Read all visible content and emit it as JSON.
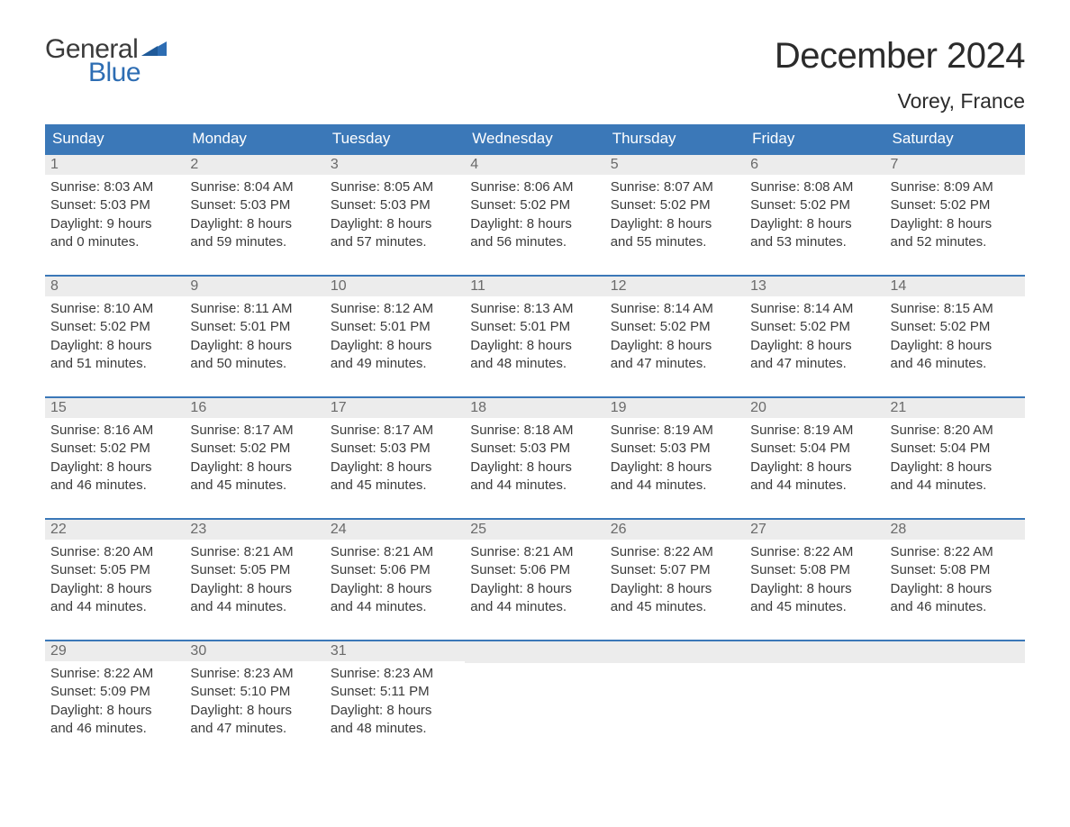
{
  "brand": {
    "word1": "General",
    "word2": "Blue",
    "text_color": "#3a3a3a",
    "accent_color": "#2d6db3"
  },
  "title": "December 2024",
  "location": "Vorey, France",
  "colors": {
    "header_bg": "#3b78b8",
    "header_text": "#ffffff",
    "daynum_bg": "#ececec",
    "daynum_text": "#6a6a6a",
    "body_text": "#3a3a3a",
    "week_border": "#3b78b8",
    "page_bg": "#ffffff"
  },
  "fonts": {
    "title_size_pt": 30,
    "location_size_pt": 17,
    "dow_size_pt": 13,
    "daynum_size_pt": 12,
    "body_size_pt": 11
  },
  "days_of_week": [
    "Sunday",
    "Monday",
    "Tuesday",
    "Wednesday",
    "Thursday",
    "Friday",
    "Saturday"
  ],
  "weeks": [
    [
      {
        "n": "1",
        "sunrise": "Sunrise: 8:03 AM",
        "sunset": "Sunset: 5:03 PM",
        "d1": "Daylight: 9 hours",
        "d2": "and 0 minutes."
      },
      {
        "n": "2",
        "sunrise": "Sunrise: 8:04 AM",
        "sunset": "Sunset: 5:03 PM",
        "d1": "Daylight: 8 hours",
        "d2": "and 59 minutes."
      },
      {
        "n": "3",
        "sunrise": "Sunrise: 8:05 AM",
        "sunset": "Sunset: 5:03 PM",
        "d1": "Daylight: 8 hours",
        "d2": "and 57 minutes."
      },
      {
        "n": "4",
        "sunrise": "Sunrise: 8:06 AM",
        "sunset": "Sunset: 5:02 PM",
        "d1": "Daylight: 8 hours",
        "d2": "and 56 minutes."
      },
      {
        "n": "5",
        "sunrise": "Sunrise: 8:07 AM",
        "sunset": "Sunset: 5:02 PM",
        "d1": "Daylight: 8 hours",
        "d2": "and 55 minutes."
      },
      {
        "n": "6",
        "sunrise": "Sunrise: 8:08 AM",
        "sunset": "Sunset: 5:02 PM",
        "d1": "Daylight: 8 hours",
        "d2": "and 53 minutes."
      },
      {
        "n": "7",
        "sunrise": "Sunrise: 8:09 AM",
        "sunset": "Sunset: 5:02 PM",
        "d1": "Daylight: 8 hours",
        "d2": "and 52 minutes."
      }
    ],
    [
      {
        "n": "8",
        "sunrise": "Sunrise: 8:10 AM",
        "sunset": "Sunset: 5:02 PM",
        "d1": "Daylight: 8 hours",
        "d2": "and 51 minutes."
      },
      {
        "n": "9",
        "sunrise": "Sunrise: 8:11 AM",
        "sunset": "Sunset: 5:01 PM",
        "d1": "Daylight: 8 hours",
        "d2": "and 50 minutes."
      },
      {
        "n": "10",
        "sunrise": "Sunrise: 8:12 AM",
        "sunset": "Sunset: 5:01 PM",
        "d1": "Daylight: 8 hours",
        "d2": "and 49 minutes."
      },
      {
        "n": "11",
        "sunrise": "Sunrise: 8:13 AM",
        "sunset": "Sunset: 5:01 PM",
        "d1": "Daylight: 8 hours",
        "d2": "and 48 minutes."
      },
      {
        "n": "12",
        "sunrise": "Sunrise: 8:14 AM",
        "sunset": "Sunset: 5:02 PM",
        "d1": "Daylight: 8 hours",
        "d2": "and 47 minutes."
      },
      {
        "n": "13",
        "sunrise": "Sunrise: 8:14 AM",
        "sunset": "Sunset: 5:02 PM",
        "d1": "Daylight: 8 hours",
        "d2": "and 47 minutes."
      },
      {
        "n": "14",
        "sunrise": "Sunrise: 8:15 AM",
        "sunset": "Sunset: 5:02 PM",
        "d1": "Daylight: 8 hours",
        "d2": "and 46 minutes."
      }
    ],
    [
      {
        "n": "15",
        "sunrise": "Sunrise: 8:16 AM",
        "sunset": "Sunset: 5:02 PM",
        "d1": "Daylight: 8 hours",
        "d2": "and 46 minutes."
      },
      {
        "n": "16",
        "sunrise": "Sunrise: 8:17 AM",
        "sunset": "Sunset: 5:02 PM",
        "d1": "Daylight: 8 hours",
        "d2": "and 45 minutes."
      },
      {
        "n": "17",
        "sunrise": "Sunrise: 8:17 AM",
        "sunset": "Sunset: 5:03 PM",
        "d1": "Daylight: 8 hours",
        "d2": "and 45 minutes."
      },
      {
        "n": "18",
        "sunrise": "Sunrise: 8:18 AM",
        "sunset": "Sunset: 5:03 PM",
        "d1": "Daylight: 8 hours",
        "d2": "and 44 minutes."
      },
      {
        "n": "19",
        "sunrise": "Sunrise: 8:19 AM",
        "sunset": "Sunset: 5:03 PM",
        "d1": "Daylight: 8 hours",
        "d2": "and 44 minutes."
      },
      {
        "n": "20",
        "sunrise": "Sunrise: 8:19 AM",
        "sunset": "Sunset: 5:04 PM",
        "d1": "Daylight: 8 hours",
        "d2": "and 44 minutes."
      },
      {
        "n": "21",
        "sunrise": "Sunrise: 8:20 AM",
        "sunset": "Sunset: 5:04 PM",
        "d1": "Daylight: 8 hours",
        "d2": "and 44 minutes."
      }
    ],
    [
      {
        "n": "22",
        "sunrise": "Sunrise: 8:20 AM",
        "sunset": "Sunset: 5:05 PM",
        "d1": "Daylight: 8 hours",
        "d2": "and 44 minutes."
      },
      {
        "n": "23",
        "sunrise": "Sunrise: 8:21 AM",
        "sunset": "Sunset: 5:05 PM",
        "d1": "Daylight: 8 hours",
        "d2": "and 44 minutes."
      },
      {
        "n": "24",
        "sunrise": "Sunrise: 8:21 AM",
        "sunset": "Sunset: 5:06 PM",
        "d1": "Daylight: 8 hours",
        "d2": "and 44 minutes."
      },
      {
        "n": "25",
        "sunrise": "Sunrise: 8:21 AM",
        "sunset": "Sunset: 5:06 PM",
        "d1": "Daylight: 8 hours",
        "d2": "and 44 minutes."
      },
      {
        "n": "26",
        "sunrise": "Sunrise: 8:22 AM",
        "sunset": "Sunset: 5:07 PM",
        "d1": "Daylight: 8 hours",
        "d2": "and 45 minutes."
      },
      {
        "n": "27",
        "sunrise": "Sunrise: 8:22 AM",
        "sunset": "Sunset: 5:08 PM",
        "d1": "Daylight: 8 hours",
        "d2": "and 45 minutes."
      },
      {
        "n": "28",
        "sunrise": "Sunrise: 8:22 AM",
        "sunset": "Sunset: 5:08 PM",
        "d1": "Daylight: 8 hours",
        "d2": "and 46 minutes."
      }
    ],
    [
      {
        "n": "29",
        "sunrise": "Sunrise: 8:22 AM",
        "sunset": "Sunset: 5:09 PM",
        "d1": "Daylight: 8 hours",
        "d2": "and 46 minutes."
      },
      {
        "n": "30",
        "sunrise": "Sunrise: 8:23 AM",
        "sunset": "Sunset: 5:10 PM",
        "d1": "Daylight: 8 hours",
        "d2": "and 47 minutes."
      },
      {
        "n": "31",
        "sunrise": "Sunrise: 8:23 AM",
        "sunset": "Sunset: 5:11 PM",
        "d1": "Daylight: 8 hours",
        "d2": "and 48 minutes."
      },
      null,
      null,
      null,
      null
    ]
  ]
}
